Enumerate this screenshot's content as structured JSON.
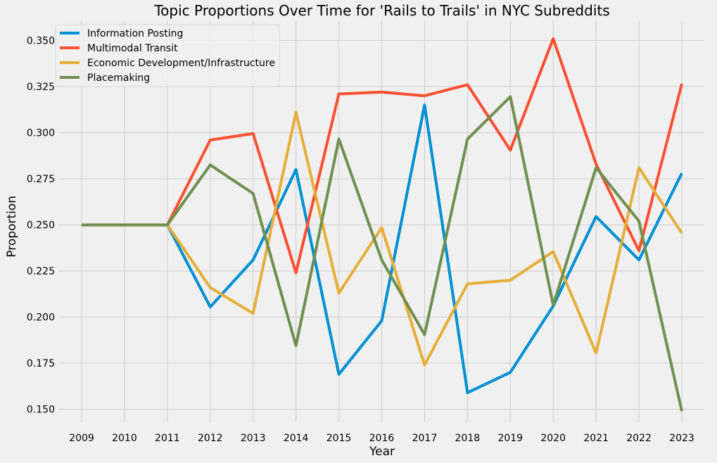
{
  "chart_data": {
    "type": "line",
    "title": "Topic Proportions Over Time for 'Rails to Trails' in NYC Subreddits",
    "xlabel": "Year",
    "ylabel": "Proportion",
    "x": [
      "2009",
      "2010",
      "2011",
      "2012",
      "2013",
      "2014",
      "2015",
      "2016",
      "2017",
      "2018",
      "2019",
      "2020",
      "2021",
      "2022",
      "2023"
    ],
    "ylim": [
      0.143,
      0.3605
    ],
    "yticks": [
      0.15,
      0.175,
      0.2,
      0.225,
      0.25,
      0.275,
      0.3,
      0.325,
      0.35
    ],
    "ytick_labels": [
      "0.150",
      "0.175",
      "0.200",
      "0.225",
      "0.250",
      "0.275",
      "0.300",
      "0.325",
      "0.350"
    ],
    "grid": true,
    "legend_position": "top-left",
    "series": [
      {
        "name": "Information Posting",
        "color": "#008fd5",
        "values": [
          0.25,
          0.25,
          0.25,
          0.2055,
          0.231,
          0.28,
          0.169,
          0.198,
          0.315,
          0.159,
          0.17,
          0.206,
          0.2545,
          0.231,
          0.278
        ]
      },
      {
        "name": "Multimodal Transit",
        "color": "#fc4f30",
        "values": [
          0.25,
          0.25,
          0.25,
          0.296,
          0.2995,
          0.224,
          0.321,
          0.322,
          0.32,
          0.326,
          0.2905,
          0.351,
          0.283,
          0.236,
          0.3265
        ]
      },
      {
        "name": "Economic Development/Infrastructure",
        "color": "#e5ae38",
        "values": [
          0.25,
          0.25,
          0.25,
          0.216,
          0.202,
          0.311,
          0.213,
          0.2485,
          0.174,
          0.218,
          0.22,
          0.2355,
          0.1805,
          0.281,
          0.2455
        ]
      },
      {
        "name": "Placemaking",
        "color": "#6d904f",
        "values": [
          0.25,
          0.25,
          0.25,
          0.2825,
          0.267,
          0.1845,
          0.2965,
          0.231,
          0.1905,
          0.2965,
          0.3195,
          0.2065,
          0.281,
          0.252,
          0.149
        ]
      }
    ]
  }
}
